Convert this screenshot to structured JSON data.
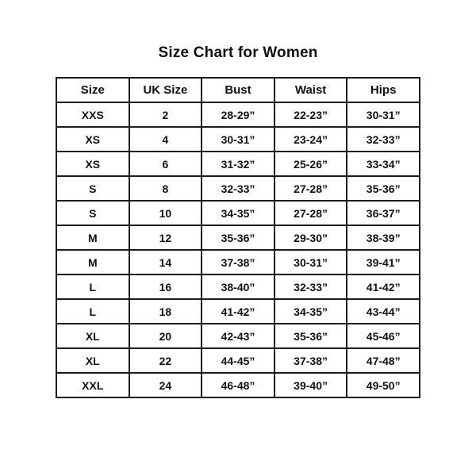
{
  "page": {
    "title": "Size Chart for Women",
    "background_color": "#ffffff",
    "text_color": "#111111",
    "border_color": "#1c1c1c"
  },
  "table": {
    "headers": [
      "Size",
      "UK Size",
      "Bust",
      "Waist",
      "Hips"
    ],
    "rows": [
      [
        "XXS",
        "2",
        "28-29”",
        "22-23”",
        "30-31”"
      ],
      [
        "XS",
        "4",
        "30-31”",
        "23-24”",
        "32-33”"
      ],
      [
        "XS",
        "6",
        "31-32”",
        "25-26”",
        "33-34”"
      ],
      [
        "S",
        "8",
        "32-33”",
        "27-28”",
        "35-36”"
      ],
      [
        "S",
        "10",
        "34-35”",
        "27-28”",
        "36-37”"
      ],
      [
        "M",
        "12",
        "35-36”",
        "29-30”",
        "38-39”"
      ],
      [
        "M",
        "14",
        "37-38”",
        "30-31”",
        "39-41”"
      ],
      [
        "L",
        "16",
        "38-40”",
        "32-33”",
        "41-42”"
      ],
      [
        "L",
        "18",
        "41-42”",
        "34-35”",
        "43-44”"
      ],
      [
        "XL",
        "20",
        "42-43”",
        "35-36”",
        "45-46”"
      ],
      [
        "XL",
        "22",
        "44-45”",
        "37-38”",
        "47-48”"
      ],
      [
        "XXL",
        "24",
        "46-48”",
        "39-40”",
        "49-50”"
      ]
    ]
  }
}
